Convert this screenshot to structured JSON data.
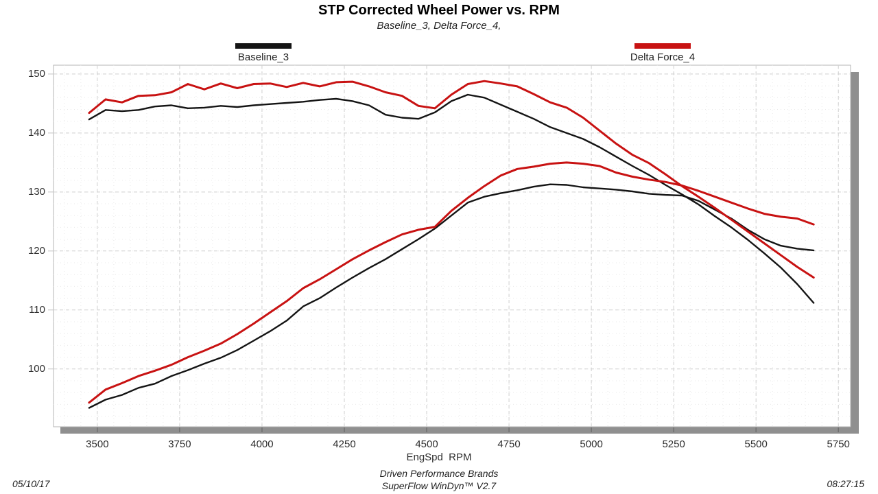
{
  "header": {
    "title": "STP Corrected Wheel Power vs. RPM",
    "subtitle": "Baseline_3, Delta Force_4,"
  },
  "legend": [
    {
      "label": "Baseline_3",
      "color": "#141414"
    },
    {
      "label": "Delta Force_4",
      "color": "#c81212"
    }
  ],
  "footer": {
    "date": "05/10/17",
    "brand_line1": "Driven Performance Brands",
    "brand_line2": "SuperFlow WinDyn™ V2.7",
    "time": "08:27:15"
  },
  "chart_data": {
    "type": "line",
    "title": "STP Corrected Wheel Power vs. RPM",
    "subtitle": "Baseline_3, Delta Force_4,",
    "xlabel": "EngSpd  RPM",
    "ylabel": "",
    "legend_position": "top",
    "grid": true,
    "xlim": [
      3367,
      5787
    ],
    "ylim": [
      90.2,
      151.5
    ],
    "x_ticks": [
      3500,
      3750,
      4000,
      4250,
      4500,
      4750,
      5000,
      5250,
      5500,
      5750
    ],
    "y_ticks": [
      150,
      140,
      130,
      120,
      110,
      100
    ],
    "x_major_step": 250,
    "x_minor_step": 50,
    "y_major_step": 10,
    "y_minor_step": 2,
    "rpm": [
      3475,
      3525,
      3575,
      3625,
      3675,
      3725,
      3775,
      3825,
      3875,
      3925,
      3975,
      4025,
      4075,
      4125,
      4175,
      4225,
      4275,
      4325,
      4375,
      4425,
      4475,
      4525,
      4575,
      4625,
      4675,
      4725,
      4775,
      4825,
      4875,
      4925,
      4975,
      5025,
      5075,
      5125,
      5175,
      5225,
      5275,
      5325,
      5375,
      5425,
      5475,
      5525,
      5575,
      5625,
      5675
    ],
    "series": [
      {
        "name": "Baseline_3 torque (upper black)",
        "color": "#141414",
        "width": 2.4,
        "values": [
          142.3,
          143.9,
          143.7,
          143.9,
          144.5,
          144.7,
          144.2,
          144.3,
          144.6,
          144.4,
          144.7,
          144.9,
          145.1,
          145.3,
          145.6,
          145.8,
          145.4,
          144.7,
          143.1,
          142.6,
          142.4,
          143.5,
          145.4,
          146.5,
          146.0,
          144.8,
          143.6,
          142.4,
          141.0,
          140.0,
          139.0,
          137.6,
          136.0,
          134.4,
          132.9,
          131.2,
          129.6,
          127.9,
          125.9,
          124.0,
          121.9,
          119.6,
          117.2,
          114.4,
          111.2
        ]
      },
      {
        "name": "Baseline_3 power (lower black)",
        "color": "#141414",
        "width": 2.4,
        "values": [
          93.4,
          94.8,
          95.6,
          96.8,
          97.5,
          98.8,
          99.8,
          100.9,
          101.9,
          103.2,
          104.8,
          106.4,
          108.2,
          110.6,
          112.0,
          113.8,
          115.5,
          117.1,
          118.6,
          120.3,
          122.0,
          123.8,
          126.0,
          128.2,
          129.2,
          129.8,
          130.3,
          130.9,
          131.3,
          131.2,
          130.8,
          130.6,
          130.4,
          130.1,
          129.7,
          129.5,
          129.4,
          128.5,
          127.0,
          125.5,
          123.6,
          122.0,
          120.9,
          120.4,
          120.1
        ]
      },
      {
        "name": "Delta Force_4 torque (upper red)",
        "color": "#c81212",
        "width": 3,
        "values": [
          143.4,
          145.7,
          145.2,
          146.3,
          146.4,
          146.9,
          148.3,
          147.4,
          148.4,
          147.6,
          148.3,
          148.4,
          147.8,
          148.5,
          147.9,
          148.6,
          148.7,
          147.9,
          146.9,
          146.3,
          144.6,
          144.2,
          146.5,
          148.3,
          148.8,
          148.4,
          147.9,
          146.6,
          145.2,
          144.3,
          142.6,
          140.4,
          138.2,
          136.3,
          134.9,
          133.0,
          131.0,
          129.2,
          127.3,
          125.3,
          123.3,
          121.3,
          119.3,
          117.3,
          115.5
        ]
      },
      {
        "name": "Delta Force_4 power (lower red)",
        "color": "#c81212",
        "width": 3,
        "values": [
          94.3,
          96.5,
          97.6,
          98.8,
          99.7,
          100.7,
          102.0,
          103.1,
          104.3,
          105.9,
          107.7,
          109.6,
          111.5,
          113.7,
          115.2,
          116.9,
          118.6,
          120.1,
          121.5,
          122.8,
          123.6,
          124.1,
          126.8,
          129.0,
          131.0,
          132.8,
          133.9,
          134.3,
          134.8,
          135.0,
          134.8,
          134.4,
          133.3,
          132.6,
          132.1,
          131.7,
          131.1,
          130.2,
          129.2,
          128.2,
          127.2,
          126.3,
          125.8,
          125.5,
          124.5
        ]
      }
    ]
  }
}
